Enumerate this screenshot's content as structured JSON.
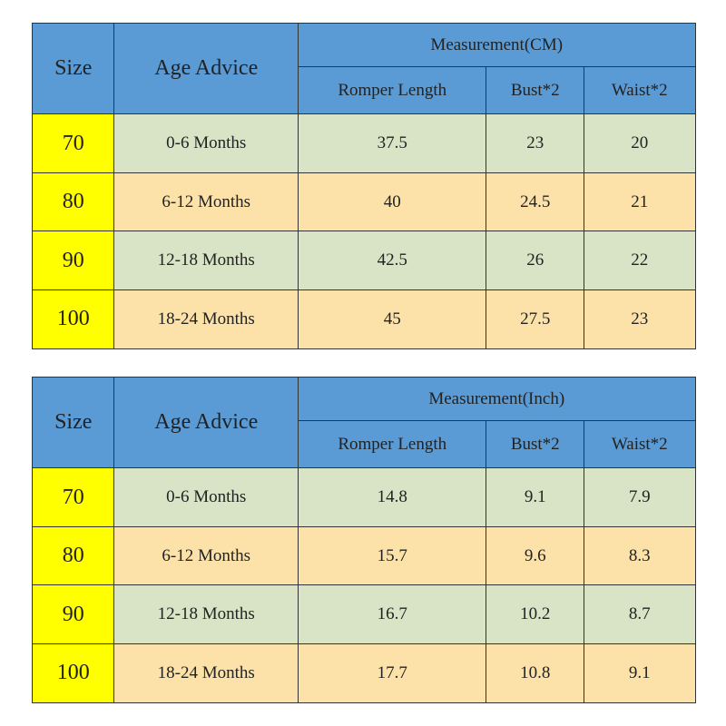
{
  "tables": [
    {
      "header": {
        "size": "Size",
        "age": "Age Advice",
        "measurement": "Measurement(CM)",
        "columns": [
          "Romper Length",
          "Bust*2",
          "Waist*2"
        ]
      },
      "rows": [
        [
          70,
          "0-6 Months",
          37.5,
          23,
          20
        ],
        [
          80,
          "6-12 Months",
          40,
          24.5,
          21
        ],
        [
          90,
          "12-18 Months",
          42.5,
          26,
          22
        ],
        [
          100,
          "18-24 Months",
          45,
          27.5,
          23
        ]
      ]
    },
    {
      "header": {
        "size": "Size",
        "age": "Age Advice",
        "measurement": "Measurement(Inch)",
        "columns": [
          "Romper Length",
          "Bust*2",
          "Waist*2"
        ]
      },
      "rows": [
        [
          70,
          "0-6 Months",
          14.8,
          9.1,
          7.9
        ],
        [
          80,
          "6-12 Months",
          15.7,
          9.6,
          8.3
        ],
        [
          90,
          "12-18 Months",
          16.7,
          10.2,
          8.7
        ],
        [
          100,
          "18-24 Months",
          17.7,
          10.8,
          9.1
        ]
      ]
    }
  ]
}
